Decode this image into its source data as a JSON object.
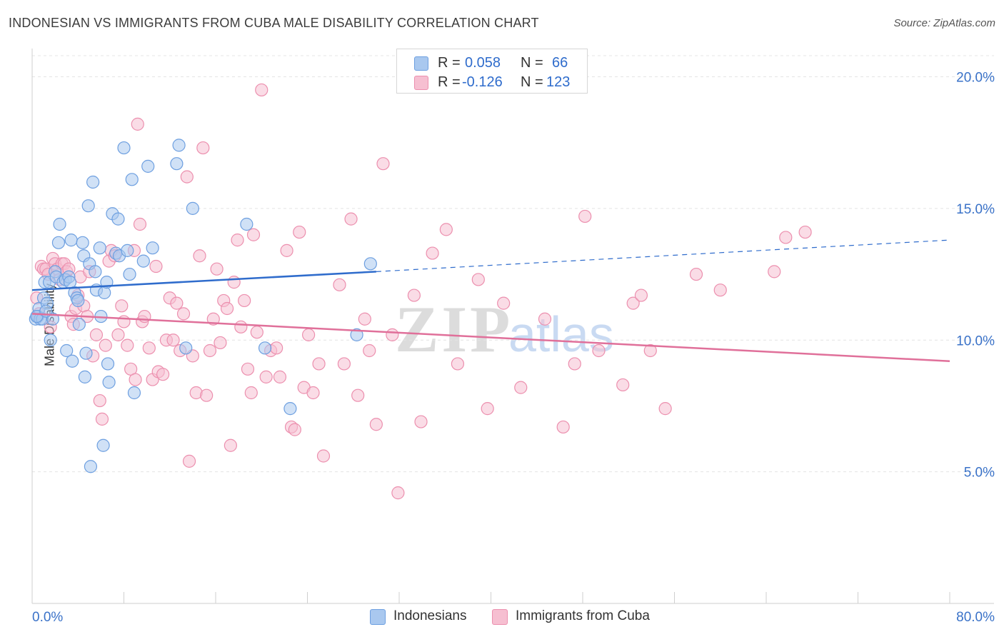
{
  "header": {
    "title": "INDONESIAN VS IMMIGRANTS FROM CUBA MALE DISABILITY CORRELATION CHART",
    "source": "Source: ZipAtlas.com"
  },
  "legend": {
    "rows": [
      {
        "r_key": "R =",
        "r_value": "0.058",
        "n_key": "N =",
        "n_value": "66"
      },
      {
        "r_key": "R =",
        "r_value": "-0.126",
        "n_key": "N =",
        "n_value": "123"
      }
    ],
    "bottom": [
      "Indonesians",
      "Immigrants from Cuba"
    ]
  },
  "watermark": {
    "zip": "ZIP",
    "atlas": "atlas"
  },
  "colors": {
    "blue_fill": "#a9c8ef",
    "blue_stroke": "#6d9fe0",
    "blue_line": "#2f6ccc",
    "pink_fill": "#f6bfd1",
    "pink_stroke": "#ec8fae",
    "pink_line": "#e0709a",
    "axis_text": "#3a72c8",
    "grid": "#e4e4e4"
  },
  "chart_data": {
    "type": "scatter",
    "title": "INDONESIAN VS IMMIGRANTS FROM CUBA MALE DISABILITY CORRELATION CHART",
    "xlabel": "",
    "ylabel": "Male Disability",
    "xlim": [
      0,
      80
    ],
    "ylim": [
      0,
      20.8
    ],
    "x_tick_labels": [
      "0.0%",
      "80.0%"
    ],
    "y_ticks": [
      5,
      10,
      15,
      20
    ],
    "y_tick_labels": [
      "5.0%",
      "10.0%",
      "15.0%",
      "20.0%"
    ],
    "grid": true,
    "legend_position": "top-center",
    "series": [
      {
        "name": "Indonesians",
        "r": 0.058,
        "n": 66,
        "trend": {
          "x0": 0,
          "y0": 11.9,
          "x1": 30,
          "y1": 12.6,
          "dash_to_x": 80,
          "dash_to_y": 13.8
        },
        "points": [
          [
            0.3,
            10.8
          ],
          [
            0.5,
            10.9
          ],
          [
            0.6,
            11.2
          ],
          [
            0.7,
            10.8
          ],
          [
            0.9,
            10.8
          ],
          [
            1.0,
            11.6
          ],
          [
            1.1,
            12.2
          ],
          [
            1.3,
            11.4
          ],
          [
            1.5,
            12.2
          ],
          [
            1.6,
            10.0
          ],
          [
            1.8,
            10.8
          ],
          [
            2.0,
            12.6
          ],
          [
            2.1,
            12.4
          ],
          [
            2.3,
            13.7
          ],
          [
            2.4,
            14.4
          ],
          [
            2.7,
            12.2
          ],
          [
            2.9,
            12.3
          ],
          [
            3.0,
            9.6
          ],
          [
            3.2,
            12.4
          ],
          [
            3.3,
            12.2
          ],
          [
            3.4,
            13.8
          ],
          [
            3.5,
            9.2
          ],
          [
            3.7,
            11.8
          ],
          [
            3.9,
            11.6
          ],
          [
            4.0,
            11.5
          ],
          [
            4.1,
            10.6
          ],
          [
            4.4,
            13.7
          ],
          [
            4.5,
            13.2
          ],
          [
            4.6,
            8.6
          ],
          [
            4.7,
            9.5
          ],
          [
            4.9,
            15.1
          ],
          [
            5.0,
            12.9
          ],
          [
            5.1,
            5.2
          ],
          [
            5.3,
            16.0
          ],
          [
            5.5,
            12.6
          ],
          [
            5.6,
            11.9
          ],
          [
            5.9,
            13.5
          ],
          [
            6.0,
            10.9
          ],
          [
            6.2,
            6.0
          ],
          [
            6.3,
            11.8
          ],
          [
            6.5,
            12.2
          ],
          [
            6.6,
            9.1
          ],
          [
            6.7,
            8.4
          ],
          [
            7.0,
            14.8
          ],
          [
            7.3,
            13.3
          ],
          [
            7.5,
            14.6
          ],
          [
            7.6,
            13.2
          ],
          [
            8.0,
            17.3
          ],
          [
            8.3,
            13.4
          ],
          [
            8.5,
            12.5
          ],
          [
            8.7,
            16.1
          ],
          [
            8.9,
            8.0
          ],
          [
            9.7,
            13.0
          ],
          [
            10.1,
            16.6
          ],
          [
            10.5,
            13.5
          ],
          [
            12.6,
            16.7
          ],
          [
            12.8,
            17.4
          ],
          [
            13.4,
            9.7
          ],
          [
            14.0,
            15.0
          ],
          [
            18.7,
            14.4
          ],
          [
            20.3,
            9.7
          ],
          [
            22.5,
            7.4
          ],
          [
            28.3,
            10.2
          ],
          [
            29.5,
            12.9
          ],
          [
            0.4,
            10.9
          ],
          [
            1.2,
            11.1
          ]
        ]
      },
      {
        "name": "Immigrants from Cuba",
        "r": -0.126,
        "n": 123,
        "trend": {
          "x0": 0,
          "y0": 11.0,
          "x1": 80,
          "y1": 9.2
        },
        "points": [
          [
            0.4,
            11.6
          ],
          [
            0.6,
            11.0
          ],
          [
            0.8,
            12.8
          ],
          [
            1.0,
            12.7
          ],
          [
            1.2,
            12.7
          ],
          [
            1.4,
            12.5
          ],
          [
            1.6,
            10.5
          ],
          [
            1.8,
            13.1
          ],
          [
            2.0,
            12.9
          ],
          [
            2.2,
            12.7
          ],
          [
            2.4,
            12.3
          ],
          [
            2.6,
            12.9
          ],
          [
            2.8,
            12.9
          ],
          [
            3.0,
            12.6
          ],
          [
            3.2,
            12.7
          ],
          [
            3.4,
            10.9
          ],
          [
            3.6,
            10.6
          ],
          [
            3.8,
            11.2
          ],
          [
            4.0,
            11.7
          ],
          [
            4.2,
            12.4
          ],
          [
            4.5,
            11.3
          ],
          [
            4.8,
            10.9
          ],
          [
            5.0,
            12.6
          ],
          [
            5.3,
            9.4
          ],
          [
            5.6,
            10.2
          ],
          [
            5.9,
            7.7
          ],
          [
            6.1,
            7.0
          ],
          [
            6.4,
            9.8
          ],
          [
            6.7,
            13.0
          ],
          [
            6.9,
            13.4
          ],
          [
            7.2,
            13.2
          ],
          [
            7.5,
            10.2
          ],
          [
            7.8,
            11.3
          ],
          [
            8.0,
            10.7
          ],
          [
            8.3,
            9.8
          ],
          [
            8.6,
            8.9
          ],
          [
            8.9,
            13.4
          ],
          [
            9.0,
            8.5
          ],
          [
            9.2,
            18.2
          ],
          [
            9.4,
            14.4
          ],
          [
            9.6,
            10.7
          ],
          [
            9.8,
            10.9
          ],
          [
            10.2,
            9.7
          ],
          [
            10.5,
            8.5
          ],
          [
            10.8,
            12.8
          ],
          [
            11.0,
            8.8
          ],
          [
            11.4,
            8.7
          ],
          [
            11.7,
            10.0
          ],
          [
            12.0,
            11.6
          ],
          [
            12.3,
            10.0
          ],
          [
            12.6,
            11.4
          ],
          [
            12.9,
            9.6
          ],
          [
            13.2,
            11.0
          ],
          [
            13.5,
            16.2
          ],
          [
            13.7,
            5.4
          ],
          [
            14.0,
            9.4
          ],
          [
            14.3,
            8.0
          ],
          [
            14.6,
            13.2
          ],
          [
            14.9,
            17.3
          ],
          [
            15.2,
            7.9
          ],
          [
            15.5,
            9.6
          ],
          [
            15.8,
            10.8
          ],
          [
            16.1,
            12.7
          ],
          [
            16.4,
            9.9
          ],
          [
            16.7,
            11.5
          ],
          [
            17.0,
            11.2
          ],
          [
            17.3,
            6.0
          ],
          [
            17.6,
            12.2
          ],
          [
            17.9,
            13.8
          ],
          [
            18.2,
            10.5
          ],
          [
            18.5,
            11.5
          ],
          [
            18.8,
            8.9
          ],
          [
            19.1,
            8.0
          ],
          [
            19.3,
            14.0
          ],
          [
            19.6,
            10.3
          ],
          [
            20.0,
            19.5
          ],
          [
            20.4,
            8.6
          ],
          [
            20.8,
            9.6
          ],
          [
            21.3,
            9.7
          ],
          [
            21.6,
            8.6
          ],
          [
            22.2,
            13.4
          ],
          [
            22.6,
            6.7
          ],
          [
            22.9,
            6.6
          ],
          [
            23.3,
            14.1
          ],
          [
            23.7,
            8.2
          ],
          [
            24.1,
            10.2
          ],
          [
            24.5,
            8.0
          ],
          [
            25.0,
            9.1
          ],
          [
            25.4,
            5.6
          ],
          [
            26.8,
            12.1
          ],
          [
            27.2,
            9.1
          ],
          [
            27.8,
            14.6
          ],
          [
            28.4,
            7.9
          ],
          [
            29.0,
            10.8
          ],
          [
            29.4,
            9.6
          ],
          [
            30.0,
            6.8
          ],
          [
            30.6,
            16.7
          ],
          [
            31.4,
            10.2
          ],
          [
            31.9,
            4.2
          ],
          [
            33.3,
            11.7
          ],
          [
            33.9,
            6.9
          ],
          [
            34.9,
            13.3
          ],
          [
            36.1,
            14.2
          ],
          [
            37.1,
            9.1
          ],
          [
            38.9,
            12.3
          ],
          [
            39.7,
            7.4
          ],
          [
            41.1,
            11.4
          ],
          [
            42.6,
            8.2
          ],
          [
            44.7,
            10.8
          ],
          [
            46.3,
            6.7
          ],
          [
            47.3,
            9.1
          ],
          [
            48.2,
            14.7
          ],
          [
            49.4,
            9.6
          ],
          [
            51.5,
            8.3
          ],
          [
            52.4,
            11.4
          ],
          [
            53.1,
            11.7
          ],
          [
            53.9,
            9.6
          ],
          [
            55.2,
            7.4
          ],
          [
            57.9,
            12.5
          ],
          [
            60.0,
            11.9
          ],
          [
            64.7,
            12.6
          ],
          [
            65.7,
            13.9
          ],
          [
            67.4,
            14.1
          ]
        ]
      }
    ]
  }
}
